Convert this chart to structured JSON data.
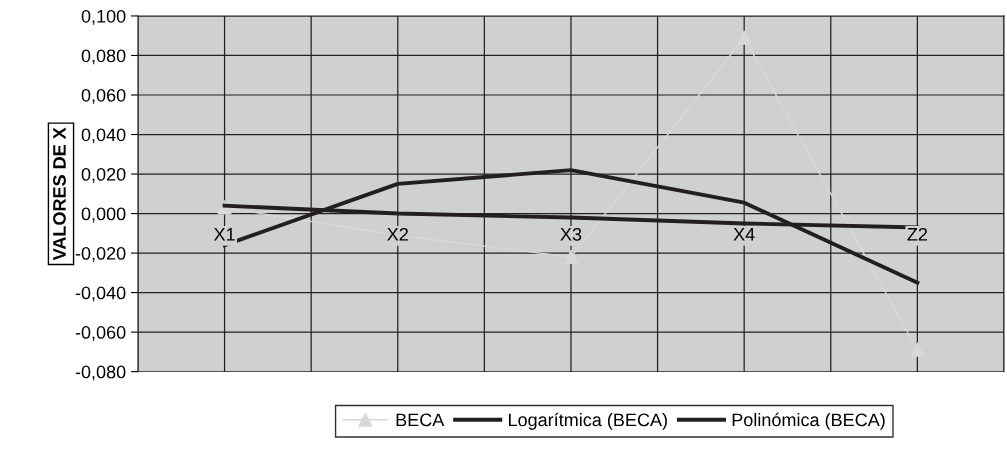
{
  "chart_data": {
    "type": "line",
    "ylabel": "VALORES DE X",
    "categories": [
      "X1",
      "X2",
      "X3",
      "X4",
      "Z2"
    ],
    "series": [
      {
        "name": "BECA",
        "color": "#d8d8d8",
        "marker": "triangle",
        "values": [
          0.003,
          -0.011,
          -0.022,
          0.089,
          -0.069
        ]
      },
      {
        "name": "Logarítmica (BECA)",
        "color": "#231f20",
        "values": [
          0.004,
          0.0,
          -0.002,
          -0.005,
          -0.007
        ]
      },
      {
        "name": "Polinómica (BECA)",
        "color": "#231f20",
        "values": [
          -0.016,
          0.015,
          0.022,
          0.0055,
          -0.035
        ]
      }
    ],
    "ylim": [
      -0.08,
      0.1
    ],
    "yticks": [
      {
        "value": -0.08,
        "label": "-0,080"
      },
      {
        "value": -0.06,
        "label": "-0,060"
      },
      {
        "value": -0.04,
        "label": "-0,040"
      },
      {
        "value": -0.02,
        "label": "-0,020"
      },
      {
        "value": 0,
        "label": "0,000"
      },
      {
        "value": 0.02,
        "label": "0,020"
      },
      {
        "value": 0.04,
        "label": "0,040"
      },
      {
        "value": 0.06,
        "label": "0,060"
      },
      {
        "value": 0.08,
        "label": "0,080"
      },
      {
        "value": 0.1,
        "label": "0,100"
      }
    ],
    "grid": true,
    "legend": "bottom"
  }
}
